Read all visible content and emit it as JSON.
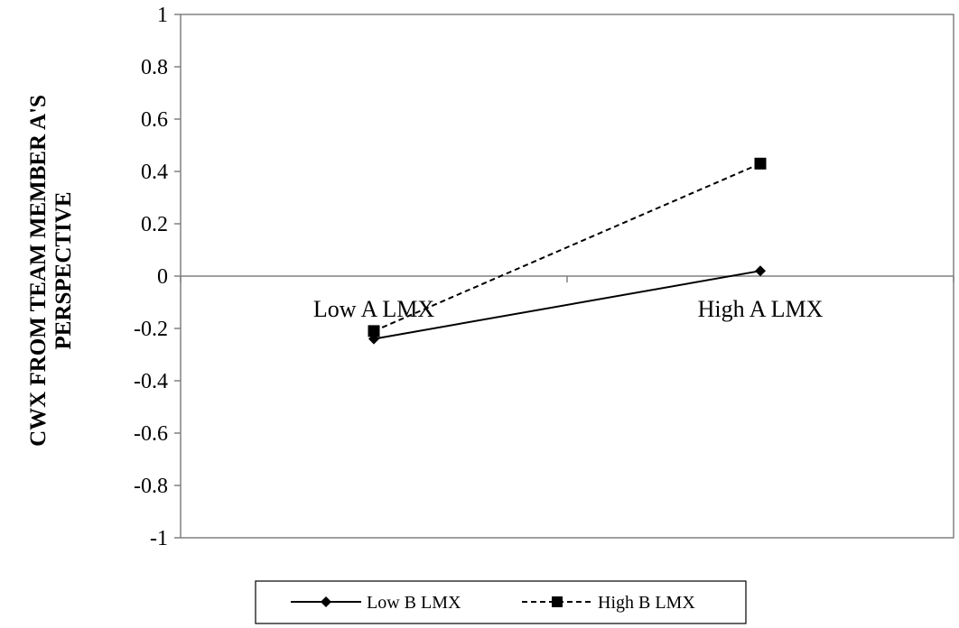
{
  "chart_data": {
    "type": "line",
    "title": "",
    "xlabel": "",
    "ylabel_lines": [
      "CWX FROM TEAM MEMBER A'S",
      "PERSPECTIVE"
    ],
    "categories": [
      "Low A LMX",
      "High A LMX"
    ],
    "ylim": [
      -1,
      1
    ],
    "yticks": [
      "-1",
      "-0.8",
      "-0.6",
      "-0.4",
      "-0.2",
      "0",
      "0.2",
      "0.4",
      "0.6",
      "0.8",
      "1"
    ],
    "ytick_values": [
      -1,
      -0.8,
      -0.6,
      -0.4,
      -0.2,
      0,
      0.2,
      0.4,
      0.6,
      0.8,
      1
    ],
    "grid": false,
    "legend_position": "bottom",
    "series": [
      {
        "name": "Low B LMX",
        "values": [
          -0.24,
          0.02
        ],
        "line_style": "solid",
        "marker": "diamond",
        "color": "#000000"
      },
      {
        "name": "High B LMX",
        "values": [
          -0.21,
          0.43
        ],
        "line_style": "dashed",
        "marker": "square",
        "color": "#000000"
      }
    ]
  }
}
